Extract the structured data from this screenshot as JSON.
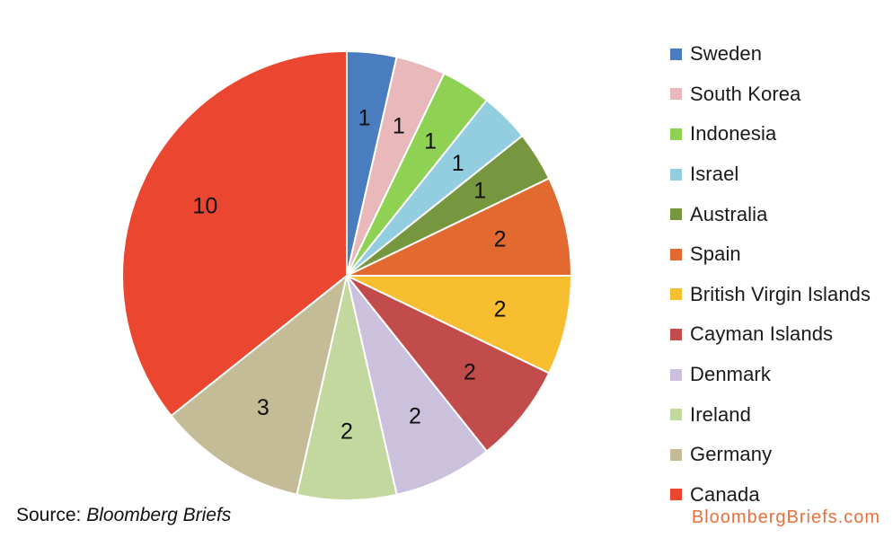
{
  "chart_data": {
    "type": "pie",
    "title": "",
    "categories": [
      "Sweden",
      "South Korea",
      "Indonesia",
      "Israel",
      "Australia",
      "Spain",
      "British Virgin Islands",
      "Cayman Islands",
      "Denmark",
      "Ireland",
      "Germany",
      "Canada"
    ],
    "values": [
      1,
      1,
      1,
      1,
      1,
      2,
      2,
      2,
      2,
      2,
      3,
      10
    ],
    "colors": [
      "#4a7cc0",
      "#e8b8ba",
      "#8fd152",
      "#92cde0",
      "#76963f",
      "#e2692f",
      "#f7be30",
      "#c14c4b",
      "#cbc1dd",
      "#c3d89f",
      "#c4bb97",
      "#ea4630"
    ],
    "start_angle_deg": 0,
    "direction": "clockwise",
    "legend_position": "right",
    "data_labels": true
  },
  "source": {
    "prefix": "Source: ",
    "name": "Bloomberg Briefs"
  },
  "brand": "BloombergBriefs.com"
}
